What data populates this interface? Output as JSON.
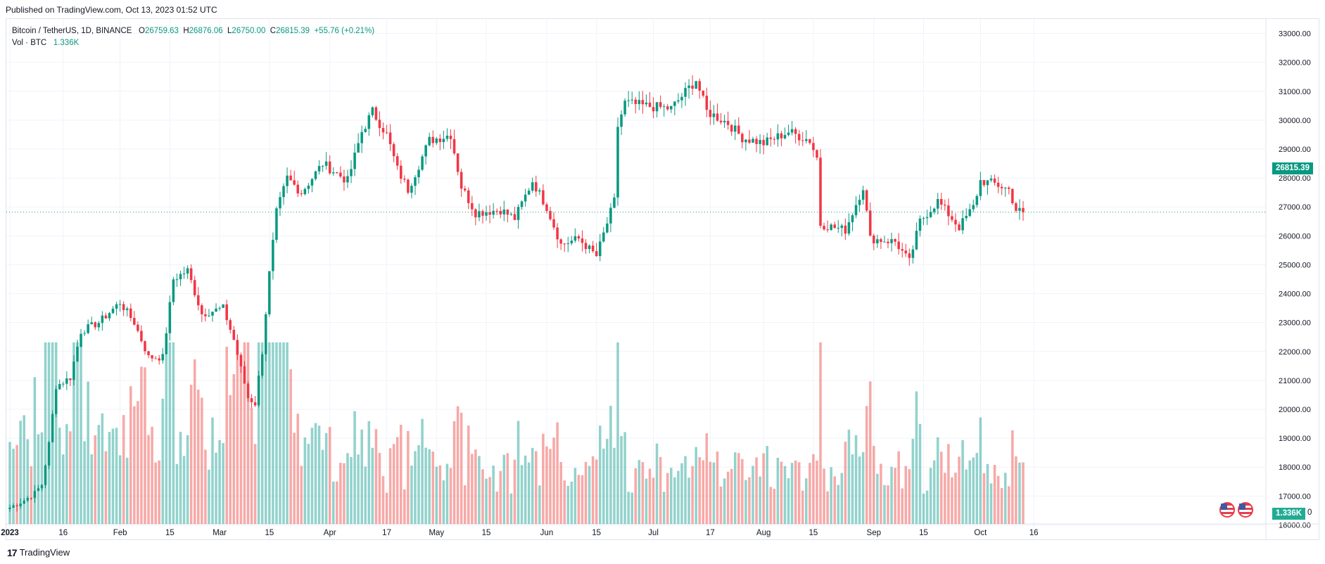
{
  "header": {
    "published": "Published on TradingView.com, Oct 13, 2023 01:52 UTC"
  },
  "legend": {
    "symbol": "Bitcoin / TetherUS, 1D, BINANCE",
    "open_label": "O",
    "open": "26759.63",
    "high_label": "H",
    "high": "26876.06",
    "low_label": "L",
    "low": "26750.00",
    "close_label": "C",
    "close": "26815.39",
    "change": "+55.76 (+0.21%)",
    "vol_label": "Vol · BTC",
    "vol_value": "1.336K"
  },
  "badges": {
    "last_price": "26815.39",
    "last_volume": "1.336K",
    "volume_zero": "0"
  },
  "footer": {
    "brand": "TradingView",
    "logo_glyph": "17"
  },
  "colors": {
    "up": "#089981",
    "down": "#f23645",
    "vol_up": "#26a69a80",
    "vol_down": "#ef535080",
    "grid": "#f0f3fa"
  },
  "chart_data": {
    "type": "candlestick",
    "title": "Bitcoin / TetherUS, 1D, BINANCE",
    "ylabel": "",
    "ylim": [
      15500,
      33500
    ],
    "price_scale_ticks": [
      "16000.00",
      "17000.00",
      "18000.00",
      "19000.00",
      "20000.00",
      "21000.00",
      "22000.00",
      "23000.00",
      "24000.00",
      "25000.00",
      "26000.00",
      "27000.00",
      "28000.00",
      "29000.00",
      "30000.00",
      "31000.00",
      "32000.00",
      "33000.00"
    ],
    "time_axis_labels": [
      {
        "label": "2023",
        "date": "2023-01-01"
      },
      {
        "label": "16",
        "date": "2023-01-16"
      },
      {
        "label": "Feb",
        "date": "2023-02-01"
      },
      {
        "label": "15",
        "date": "2023-02-15"
      },
      {
        "label": "Mar",
        "date": "2023-03-01"
      },
      {
        "label": "15",
        "date": "2023-03-15"
      },
      {
        "label": "Apr",
        "date": "2023-04-01"
      },
      {
        "label": "17",
        "date": "2023-04-17"
      },
      {
        "label": "May",
        "date": "2023-05-01"
      },
      {
        "label": "15",
        "date": "2023-05-15"
      },
      {
        "label": "Jun",
        "date": "2023-06-01"
      },
      {
        "label": "15",
        "date": "2023-06-15"
      },
      {
        "label": "Jul",
        "date": "2023-07-01"
      },
      {
        "label": "17",
        "date": "2023-07-17"
      },
      {
        "label": "Aug",
        "date": "2023-08-01"
      },
      {
        "label": "15",
        "date": "2023-08-15"
      },
      {
        "label": "Sep",
        "date": "2023-09-01"
      },
      {
        "label": "15",
        "date": "2023-09-15"
      },
      {
        "label": "Oct",
        "date": "2023-10-01"
      },
      {
        "label": "16",
        "date": "2023-10-16"
      }
    ],
    "start_date": "2023-01-01",
    "end_date": "2023-10-13",
    "close_anchors": [
      [
        "2023-01-01",
        16600
      ],
      [
        "2023-01-05",
        16850
      ],
      [
        "2023-01-08",
        17100
      ],
      [
        "2023-01-10",
        17400
      ],
      [
        "2023-01-12",
        18800
      ],
      [
        "2023-01-14",
        20800
      ],
      [
        "2023-01-18",
        21100
      ],
      [
        "2023-01-21",
        22700
      ],
      [
        "2023-01-26",
        23000
      ],
      [
        "2023-02-01",
        23700
      ],
      [
        "2023-02-05",
        23000
      ],
      [
        "2023-02-09",
        21800
      ],
      [
        "2023-02-13",
        21800
      ],
      [
        "2023-02-16",
        24500
      ],
      [
        "2023-02-20",
        24800
      ],
      [
        "2023-02-24",
        23300
      ],
      [
        "2023-03-02",
        23500
      ],
      [
        "2023-03-05",
        22400
      ],
      [
        "2023-03-09",
        20400
      ],
      [
        "2023-03-11",
        20200
      ],
      [
        "2023-03-13",
        22000
      ],
      [
        "2023-03-15",
        24700
      ],
      [
        "2023-03-17",
        26800
      ],
      [
        "2023-03-20",
        28000
      ],
      [
        "2023-03-24",
        27500
      ],
      [
        "2023-03-30",
        28500
      ],
      [
        "2023-04-06",
        27900
      ],
      [
        "2023-04-10",
        29600
      ],
      [
        "2023-04-13",
        30300
      ],
      [
        "2023-04-17",
        29500
      ],
      [
        "2023-04-20",
        28300
      ],
      [
        "2023-04-23",
        27600
      ],
      [
        "2023-04-29",
        29300
      ],
      [
        "2023-05-05",
        29500
      ],
      [
        "2023-05-08",
        27700
      ],
      [
        "2023-05-12",
        26800
      ],
      [
        "2023-05-19",
        26900
      ],
      [
        "2023-05-23",
        26600
      ],
      [
        "2023-05-28",
        27900
      ],
      [
        "2023-06-01",
        27000
      ],
      [
        "2023-06-05",
        25700
      ],
      [
        "2023-06-10",
        25900
      ],
      [
        "2023-06-15",
        25300
      ],
      [
        "2023-06-20",
        27200
      ],
      [
        "2023-06-21",
        29800
      ],
      [
        "2023-06-23",
        30600
      ],
      [
        "2023-06-28",
        30500
      ],
      [
        "2023-07-06",
        30400
      ],
      [
        "2023-07-13",
        31400
      ],
      [
        "2023-07-16",
        30300
      ],
      [
        "2023-07-22",
        29900
      ],
      [
        "2023-07-26",
        29400
      ],
      [
        "2023-08-01",
        29200
      ],
      [
        "2023-08-08",
        29600
      ],
      [
        "2023-08-14",
        29300
      ],
      [
        "2023-08-16",
        28700
      ],
      [
        "2023-08-17",
        26400
      ],
      [
        "2023-08-24",
        26200
      ],
      [
        "2023-08-29",
        27700
      ],
      [
        "2023-08-31",
        25900
      ],
      [
        "2023-09-07",
        25800
      ],
      [
        "2023-09-11",
        25100
      ],
      [
        "2023-09-14",
        26500
      ],
      [
        "2023-09-19",
        27200
      ],
      [
        "2023-09-25",
        26300
      ],
      [
        "2023-09-29",
        27000
      ],
      [
        "2023-10-01",
        27900
      ],
      [
        "2023-10-05",
        27800
      ],
      [
        "2023-10-09",
        27600
      ],
      [
        "2023-10-11",
        26900
      ],
      [
        "2023-10-13",
        26815
      ]
    ],
    "volume_ylim": [
      0,
      28000
    ],
    "last_close": 26815.39
  }
}
